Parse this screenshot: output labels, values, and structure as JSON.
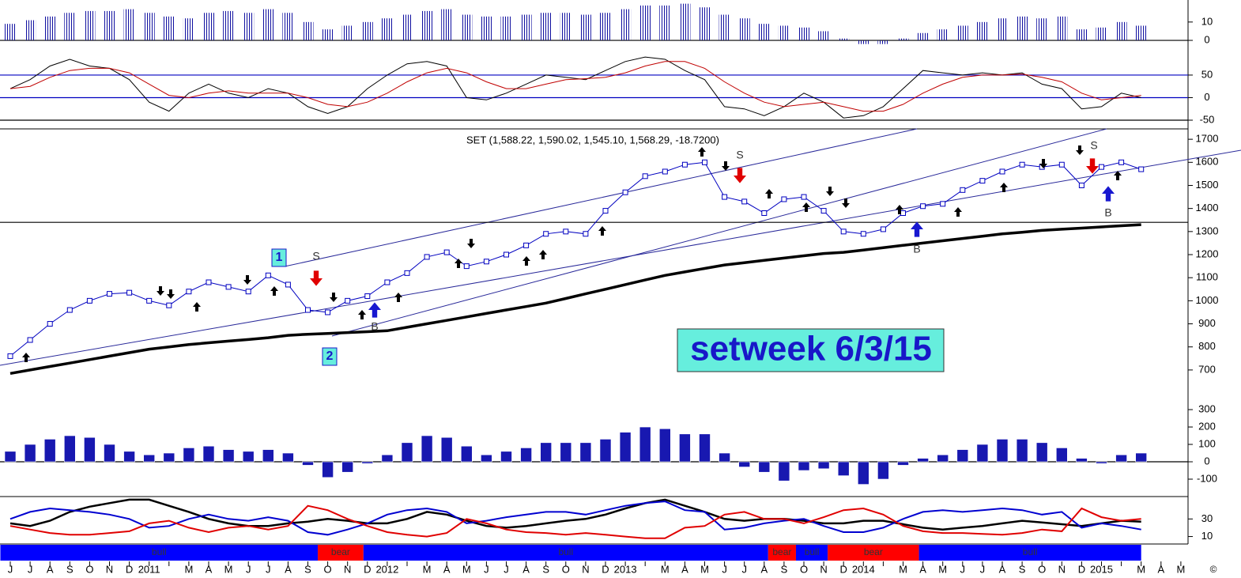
{
  "chart_data": {
    "title": "SET (1,588.22, 1,590.02, 1,545.10, 1,568.29, -18.7200)",
    "caption": "setweek 6/3/15",
    "corner_mark": "©",
    "categories": [
      "J",
      "J",
      "A",
      "S",
      "O",
      "N",
      "D",
      "2011",
      null,
      "M",
      "A",
      "M",
      "J",
      "J",
      "A",
      "S",
      "O",
      "N",
      "D",
      "2012",
      null,
      "M",
      "A",
      "M",
      "J",
      "J",
      "A",
      "S",
      "O",
      "N",
      "D",
      "2013",
      null,
      "M",
      "A",
      "M",
      "J",
      "J",
      "A",
      "S",
      "O",
      "N",
      "D",
      "2014",
      null,
      "M",
      "A",
      "M",
      "J",
      "J",
      "A",
      "S",
      "O",
      "N",
      "D",
      "2015",
      null,
      "M",
      "A",
      "M"
    ],
    "panels": [
      {
        "type": "bar",
        "color": "#1010a0",
        "ylim": [
          -1.7,
          22
        ],
        "yticks": [
          0,
          10
        ],
        "reference_lines": [
          {
            "value": 0,
            "color": "#000000"
          }
        ],
        "values": [
          9,
          11,
          13,
          15,
          16,
          16,
          17,
          15,
          13,
          12,
          15,
          16,
          15,
          17,
          15,
          10,
          6,
          8,
          10,
          12,
          14,
          16,
          17,
          14,
          13,
          13,
          14,
          15,
          15,
          14,
          15,
          17,
          19,
          19,
          20,
          18,
          14,
          12,
          9,
          8,
          7,
          5,
          1,
          -2,
          -2,
          1,
          4,
          6,
          8,
          10,
          12,
          13,
          12,
          13,
          6,
          7,
          10,
          8,
          null,
          null
        ]
      },
      {
        "type": "line",
        "ylim": [
          -64,
          120
        ],
        "yticks": [
          -50,
          0,
          50
        ],
        "reference_lines": [
          {
            "value": 50,
            "color": "#0000c0"
          },
          {
            "value": 0,
            "color": "#0000c0"
          },
          {
            "value": -50,
            "color": "#000000"
          }
        ],
        "series": [
          {
            "color": "#000000",
            "width": 1,
            "values": [
              20,
              40,
              70,
              85,
              70,
              65,
              40,
              -10,
              -30,
              10,
              30,
              10,
              0,
              20,
              10,
              -20,
              -35,
              -20,
              20,
              50,
              75,
              80,
              70,
              0,
              -5,
              10,
              30,
              50,
              45,
              40,
              60,
              80,
              90,
              85,
              60,
              40,
              -20,
              -25,
              -40,
              -20,
              10,
              -10,
              -45,
              -40,
              -20,
              20,
              60,
              55,
              50,
              55,
              50,
              55,
              30,
              20,
              -25,
              -20,
              10,
              0,
              null,
              null
            ]
          },
          {
            "color": "#c00000",
            "width": 1,
            "values": [
              20,
              25,
              45,
              60,
              65,
              65,
              55,
              30,
              5,
              0,
              10,
              15,
              10,
              10,
              10,
              0,
              -15,
              -20,
              -10,
              10,
              35,
              55,
              65,
              55,
              35,
              20,
              20,
              30,
              40,
              42,
              45,
              55,
              70,
              80,
              80,
              65,
              35,
              10,
              -10,
              -20,
              -15,
              -10,
              -20,
              -30,
              -30,
              -15,
              10,
              30,
              45,
              50,
              50,
              52,
              45,
              35,
              10,
              -5,
              0,
              5,
              null,
              null
            ]
          }
        ]
      },
      {
        "type": "line",
        "ylim": [
          590,
          1745
        ],
        "yticks": [
          700,
          800,
          900,
          1000,
          1100,
          1200,
          1300,
          1400,
          1500,
          1600,
          1700
        ],
        "reference_lines": [
          {
            "value": 1340,
            "color": "#000000"
          }
        ],
        "annotations": [
          {
            "text": "S"
          },
          {
            "text": "S"
          },
          {
            "text": "S"
          },
          {
            "text": "B"
          },
          {
            "text": "B"
          },
          {
            "text": "B"
          },
          {
            "text": "1",
            "boxed": true
          },
          {
            "text": "2",
            "boxed": true
          }
        ],
        "series": [
          {
            "color": "#0000c0",
            "width": 1,
            "markers": true,
            "values": [
              760,
              830,
              900,
              960,
              1000,
              1030,
              1035,
              1000,
              980,
              1040,
              1080,
              1060,
              1040,
              1110,
              1070,
              960,
              950,
              1000,
              1020,
              1080,
              1120,
              1190,
              1210,
              1150,
              1170,
              1200,
              1240,
              1290,
              1300,
              1290,
              1390,
              1470,
              1540,
              1560,
              1590,
              1600,
              1450,
              1430,
              1380,
              1440,
              1450,
              1390,
              1300,
              1290,
              1310,
              1380,
              1410,
              1420,
              1480,
              1520,
              1560,
              1590,
              1580,
              1590,
              1500,
              1580,
              1600,
              1570,
              null,
              null
            ]
          },
          {
            "color": "#000000",
            "width": 3.5,
            "values": [
              685,
              700,
              715,
              730,
              745,
              760,
              775,
              790,
              800,
              810,
              818,
              825,
              832,
              840,
              850,
              855,
              858,
              862,
              866,
              870,
              885,
              900,
              915,
              930,
              945,
              960,
              975,
              990,
              1010,
              1030,
              1050,
              1070,
              1090,
              1110,
              1125,
              1140,
              1155,
              1165,
              1175,
              1185,
              1195,
              1205,
              1210,
              1220,
              1230,
              1240,
              1250,
              1260,
              1270,
              1280,
              1290,
              1297,
              1305,
              1310,
              1315,
              1320,
              1325,
              1330,
              null,
              null
            ]
          }
        ]
      },
      {
        "type": "bar",
        "color": "#1818b0",
        "ylim": [
          -200,
          382
        ],
        "yticks": [
          -100,
          0,
          100,
          200,
          300
        ],
        "reference_lines": [
          {
            "value": 0,
            "color": "#000000"
          }
        ],
        "values": [
          60,
          100,
          130,
          150,
          140,
          100,
          60,
          40,
          50,
          80,
          90,
          70,
          60,
          70,
          50,
          -20,
          -90,
          -60,
          -10,
          40,
          110,
          150,
          140,
          90,
          40,
          60,
          80,
          110,
          110,
          110,
          130,
          170,
          200,
          190,
          160,
          160,
          50,
          -30,
          -60,
          -110,
          -50,
          -40,
          -80,
          -130,
          -100,
          -20,
          20,
          40,
          70,
          100,
          130,
          130,
          110,
          80,
          20,
          -10,
          40,
          50,
          null,
          null
        ]
      },
      {
        "type": "line",
        "ylim": [
          1.5,
          55.5
        ],
        "yticks": [
          10,
          30
        ],
        "series": [
          {
            "color": "#000000",
            "width": 2.5,
            "values": [
              25,
              22,
              28,
              38,
              44,
              48,
              52,
              52,
              45,
              38,
              30,
              25,
              22,
              22,
              25,
              27,
              30,
              28,
              25,
              25,
              30,
              38,
              35,
              28,
              22,
              20,
              22,
              25,
              28,
              30,
              35,
              42,
              48,
              52,
              45,
              38,
              30,
              28,
              30,
              30,
              28,
              25,
              25,
              28,
              28,
              24,
              20,
              18,
              20,
              22,
              25,
              28,
              26,
              24,
              22,
              25,
              28,
              27,
              null,
              null
            ]
          },
          {
            "color": "#0000d0",
            "width": 2,
            "values": [
              30,
              38,
              42,
              40,
              38,
              35,
              30,
              20,
              22,
              30,
              35,
              30,
              28,
              32,
              28,
              15,
              12,
              18,
              25,
              35,
              40,
              42,
              38,
              25,
              28,
              32,
              35,
              38,
              38,
              35,
              40,
              45,
              48,
              50,
              40,
              38,
              18,
              20,
              25,
              28,
              30,
              22,
              15,
              15,
              20,
              30,
              38,
              40,
              38,
              40,
              42,
              40,
              35,
              38,
              20,
              25,
              22,
              18,
              null,
              null
            ]
          },
          {
            "color": "#e00000",
            "width": 2,
            "values": [
              22,
              18,
              14,
              12,
              12,
              14,
              16,
              25,
              28,
              20,
              15,
              20,
              22,
              18,
              22,
              45,
              40,
              30,
              22,
              15,
              12,
              10,
              14,
              30,
              25,
              18,
              15,
              14,
              12,
              14,
              12,
              10,
              8,
              8,
              20,
              22,
              35,
              38,
              30,
              30,
              25,
              32,
              40,
              42,
              35,
              22,
              16,
              14,
              14,
              13,
              12,
              14,
              18,
              16,
              42,
              32,
              28,
              30,
              null,
              null
            ]
          }
        ]
      }
    ],
    "regimes": [
      {
        "label": "bull",
        "color": "#0000ff",
        "span": [
          -0.5,
          15.5
        ]
      },
      {
        "label": "bear",
        "color": "#ff0000",
        "span": [
          15.5,
          17.8
        ]
      },
      {
        "label": "bull",
        "color": "#0000ff",
        "span": [
          17.8,
          38.2
        ]
      },
      {
        "label": "bear",
        "color": "#ff0000",
        "span": [
          38.2,
          39.6
        ]
      },
      {
        "label": "bull",
        "color": "#0000ff",
        "span": [
          39.6,
          41.2
        ]
      },
      {
        "label": "bear",
        "color": "#ff0000",
        "span": [
          41.2,
          45.8
        ]
      },
      {
        "label": "bull",
        "color": "#0000ff",
        "span": [
          45.8,
          57
        ]
      }
    ]
  }
}
